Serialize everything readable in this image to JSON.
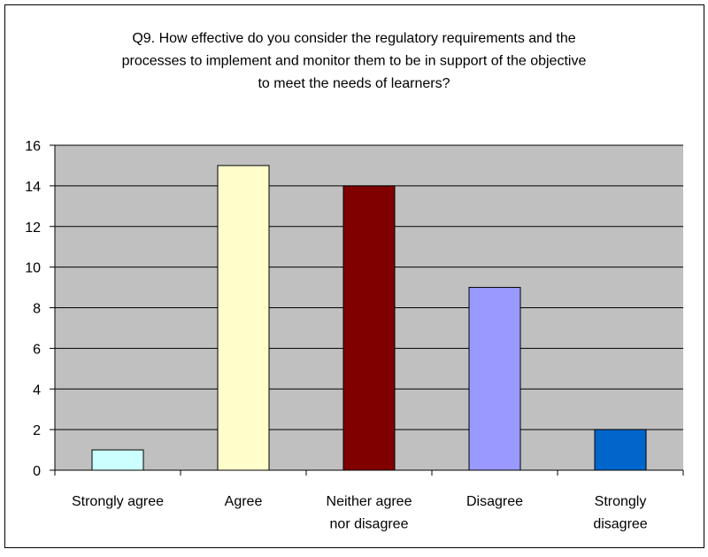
{
  "chart_data": {
    "type": "bar",
    "title": "Q9. How effective do you consider the regulatory requirements and the\nprocesses to implement and monitor them to be in support of the objective\nto meet the needs of learners?",
    "categories": [
      "Strongly agree",
      "Agree",
      "Neither agree\nnor disagree",
      "Disagree",
      "Strongly\ndisagree"
    ],
    "values": [
      1,
      15,
      14,
      9,
      2
    ],
    "colors": [
      "#ccffff",
      "#ffffcc",
      "#800000",
      "#9999ff",
      "#0066cc"
    ],
    "ylim": [
      0,
      16
    ],
    "yticks": [
      0,
      2,
      4,
      6,
      8,
      10,
      12,
      14,
      16
    ],
    "grid": true
  }
}
